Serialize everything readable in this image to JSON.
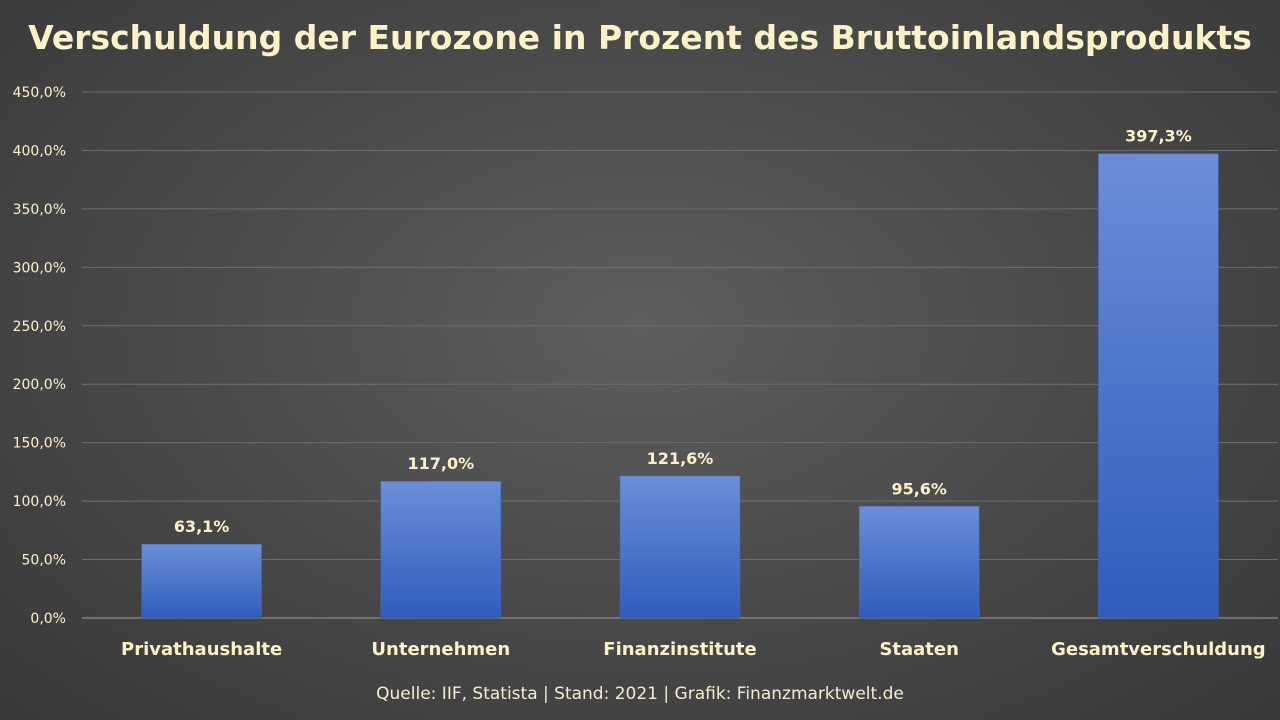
{
  "chart_data": {
    "type": "bar",
    "title": "Verschuldung der Eurozone in Prozent des Bruttoinlandsprodukts",
    "categories": [
      "Privathaushalte",
      "Unternehmen",
      "Finanzinstitute",
      "Staaten",
      "Gesamtverschuldung"
    ],
    "values": [
      63.1,
      117.0,
      121.6,
      95.6,
      397.3
    ],
    "value_labels": [
      "63,1%",
      "117,0%",
      "121,6%",
      "95,6%",
      "397,3%"
    ],
    "ylim": [
      0,
      450
    ],
    "yticks": [
      0,
      50,
      100,
      150,
      200,
      250,
      300,
      350,
      400,
      450
    ],
    "ytick_labels": [
      "0,0%",
      "50,0%",
      "100,0%",
      "150,0%",
      "200,0%",
      "250,0%",
      "300,0%",
      "350,0%",
      "400,0%",
      "450,0%"
    ],
    "xlabel": "",
    "ylabel": "",
    "grid": true,
    "legend": "none",
    "source": "Quelle: IIF, Statista | Stand: 2021 | Grafik: Finanzmarktwelt.de",
    "colors": {
      "bar_top": "#6b8fd6",
      "bar_bottom": "#2f5cbe",
      "text": "#fdf1c6",
      "grid": "#6e6e6e",
      "axis": "#a0a0a0"
    }
  }
}
